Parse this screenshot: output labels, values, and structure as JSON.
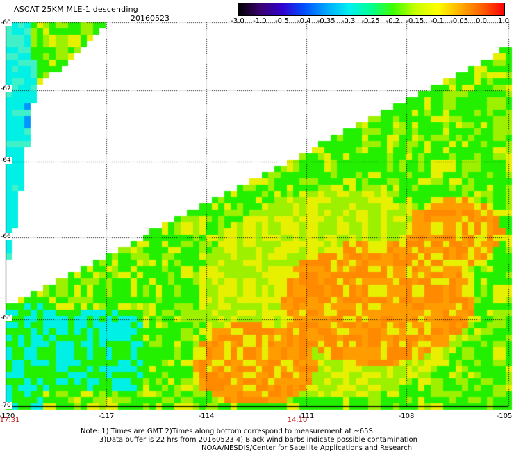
{
  "header": {
    "title": "ASCAT 25KM MLE-1 descending",
    "date": "20160523"
  },
  "colorbar": {
    "labels": [
      "-3.0",
      "-1.0",
      "-0.5",
      "-0.4",
      "-0.35",
      "-0.3",
      "-0.25",
      "-0.2",
      "-0.15",
      "-0.1",
      "-0.05",
      "0.0",
      "1.0"
    ],
    "colors": [
      "#000000",
      "#3a0070",
      "#3000d0",
      "#0050ff",
      "#00a8ff",
      "#00f0f0",
      "#00ff90",
      "#40ff00",
      "#c8ff00",
      "#ffff00",
      "#ffb000",
      "#ff6000",
      "#ff0000"
    ]
  },
  "map": {
    "lat_labels": [
      "-60",
      "-62",
      "-64",
      "-66",
      "-68",
      "-70"
    ],
    "lon_labels": [
      "-120",
      "-117",
      "-114",
      "-111",
      "-108",
      "-105"
    ],
    "time_labels": [
      "17:31",
      "14:10"
    ],
    "data_colors": {
      "cyan": "#00f0e6",
      "blue": "#0096ff",
      "green": "#22f000",
      "lime": "#9cf000",
      "yellow": "#e6f000",
      "orange": "#ff9c00",
      "deep_orange": "#ff8a00"
    }
  },
  "notes": {
    "line1": "Note: 1) Times are GMT 2)Times along bottom correspond to measurement at ~65S",
    "line2": "3)Data buffer is 22 hrs from 20160523 4) Black wind barbs indicate possible contamination",
    "line3": "NOAA/NESDIS/Center for Satellite Applications and Research"
  }
}
